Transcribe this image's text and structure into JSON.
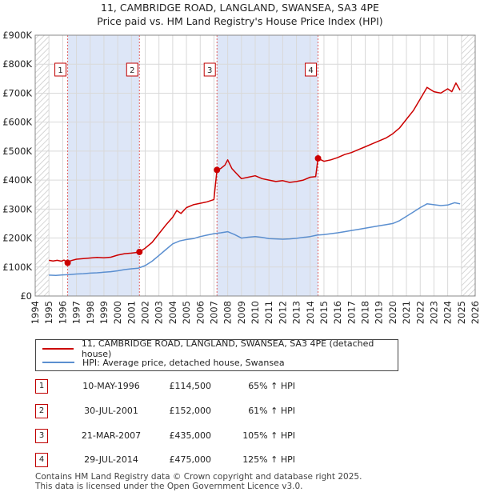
{
  "chart_data": {
    "type": "line",
    "title": [
      "11, CAMBRIDGE ROAD, LANGLAND, SWANSEA, SA3 4PE",
      "Price paid vs. HM Land Registry's House Price Index (HPI)"
    ],
    "xlim": [
      1994,
      2026
    ],
    "ylim": [
      0,
      900000
    ],
    "x_ticks": [
      1994,
      1995,
      1996,
      1997,
      1998,
      1999,
      2000,
      2001,
      2002,
      2003,
      2004,
      2005,
      2006,
      2007,
      2008,
      2009,
      2010,
      2011,
      2012,
      2013,
      2014,
      2015,
      2016,
      2017,
      2018,
      2019,
      2020,
      2021,
      2022,
      2023,
      2024,
      2025,
      2026
    ],
    "y_ticks": [
      {
        "value": 0,
        "label": "£0"
      },
      {
        "value": 100000,
        "label": "£100K"
      },
      {
        "value": 200000,
        "label": "£200K"
      },
      {
        "value": 300000,
        "label": "£300K"
      },
      {
        "value": 400000,
        "label": "£400K"
      },
      {
        "value": 500000,
        "label": "£500K"
      },
      {
        "value": 600000,
        "label": "£600K"
      },
      {
        "value": 700000,
        "label": "£700K"
      },
      {
        "value": 800000,
        "label": "£800K"
      },
      {
        "value": 900000,
        "label": "£900K"
      }
    ],
    "shaded_ranges": [
      [
        1996.36,
        2001.58
      ],
      [
        2007.22,
        2014.57
      ]
    ],
    "hatch_ranges": [
      [
        1994,
        1995
      ],
      [
        2025.0,
        2026
      ]
    ],
    "series": [
      {
        "name": "11, CAMBRIDGE ROAD, LANGLAND, SWANSEA, SA3 4PE (detached house)",
        "color": "#cc0000",
        "points": [
          [
            1995.0,
            123000
          ],
          [
            1995.3,
            121000
          ],
          [
            1995.6,
            123000
          ],
          [
            1995.9,
            120000
          ],
          [
            1996.1,
            124000
          ],
          [
            1996.36,
            114500
          ],
          [
            1996.6,
            122000
          ],
          [
            1997.0,
            127000
          ],
          [
            1997.5,
            129000
          ],
          [
            1998.0,
            131000
          ],
          [
            1998.5,
            133000
          ],
          [
            1999.0,
            132000
          ],
          [
            1999.5,
            134000
          ],
          [
            2000.0,
            141000
          ],
          [
            2000.5,
            146000
          ],
          [
            2001.0,
            148000
          ],
          [
            2001.3,
            150000
          ],
          [
            2001.58,
            152000
          ],
          [
            2002.0,
            165000
          ],
          [
            2002.5,
            185000
          ],
          [
            2003.0,
            215000
          ],
          [
            2003.5,
            245000
          ],
          [
            2004.0,
            272000
          ],
          [
            2004.3,
            295000
          ],
          [
            2004.6,
            285000
          ],
          [
            2005.0,
            305000
          ],
          [
            2005.5,
            315000
          ],
          [
            2006.0,
            320000
          ],
          [
            2006.5,
            325000
          ],
          [
            2007.0,
            333000
          ],
          [
            2007.22,
            435000
          ],
          [
            2007.5,
            440000
          ],
          [
            2007.8,
            452000
          ],
          [
            2008.0,
            470000
          ],
          [
            2008.3,
            440000
          ],
          [
            2008.6,
            425000
          ],
          [
            2009.0,
            405000
          ],
          [
            2009.5,
            410000
          ],
          [
            2010.0,
            415000
          ],
          [
            2010.5,
            405000
          ],
          [
            2011.0,
            400000
          ],
          [
            2011.5,
            395000
          ],
          [
            2012.0,
            398000
          ],
          [
            2012.5,
            392000
          ],
          [
            2013.0,
            395000
          ],
          [
            2013.5,
            400000
          ],
          [
            2014.0,
            410000
          ],
          [
            2014.4,
            412000
          ],
          [
            2014.57,
            475000
          ],
          [
            2015.0,
            465000
          ],
          [
            2015.5,
            470000
          ],
          [
            2016.0,
            478000
          ],
          [
            2016.5,
            488000
          ],
          [
            2017.0,
            495000
          ],
          [
            2017.5,
            505000
          ],
          [
            2018.0,
            515000
          ],
          [
            2018.5,
            525000
          ],
          [
            2019.0,
            535000
          ],
          [
            2019.5,
            545000
          ],
          [
            2020.0,
            560000
          ],
          [
            2020.5,
            580000
          ],
          [
            2021.0,
            610000
          ],
          [
            2021.5,
            640000
          ],
          [
            2022.0,
            680000
          ],
          [
            2022.5,
            720000
          ],
          [
            2023.0,
            705000
          ],
          [
            2023.5,
            700000
          ],
          [
            2024.0,
            715000
          ],
          [
            2024.3,
            705000
          ],
          [
            2024.6,
            735000
          ],
          [
            2024.9,
            710000
          ]
        ]
      },
      {
        "name": "HPI: Average price, detached house, Swansea",
        "color": "#5b8fd0",
        "points": [
          [
            1995.0,
            72000
          ],
          [
            1995.5,
            71000
          ],
          [
            1996.0,
            73000
          ],
          [
            1996.5,
            74000
          ],
          [
            1997.0,
            76000
          ],
          [
            1997.5,
            77000
          ],
          [
            1998.0,
            79000
          ],
          [
            1998.5,
            80000
          ],
          [
            1999.0,
            82000
          ],
          [
            1999.5,
            84000
          ],
          [
            2000.0,
            87000
          ],
          [
            2000.5,
            91000
          ],
          [
            2001.0,
            94000
          ],
          [
            2001.5,
            96000
          ],
          [
            2002.0,
            105000
          ],
          [
            2002.5,
            120000
          ],
          [
            2003.0,
            140000
          ],
          [
            2003.5,
            160000
          ],
          [
            2004.0,
            180000
          ],
          [
            2004.5,
            190000
          ],
          [
            2005.0,
            195000
          ],
          [
            2005.5,
            198000
          ],
          [
            2006.0,
            205000
          ],
          [
            2006.5,
            210000
          ],
          [
            2007.0,
            215000
          ],
          [
            2007.5,
            218000
          ],
          [
            2008.0,
            222000
          ],
          [
            2008.5,
            212000
          ],
          [
            2009.0,
            200000
          ],
          [
            2009.5,
            203000
          ],
          [
            2010.0,
            205000
          ],
          [
            2010.5,
            202000
          ],
          [
            2011.0,
            198000
          ],
          [
            2011.5,
            197000
          ],
          [
            2012.0,
            196000
          ],
          [
            2012.5,
            197000
          ],
          [
            2013.0,
            199000
          ],
          [
            2013.5,
            202000
          ],
          [
            2014.0,
            205000
          ],
          [
            2014.5,
            210000
          ],
          [
            2015.0,
            212000
          ],
          [
            2015.5,
            215000
          ],
          [
            2016.0,
            218000
          ],
          [
            2016.5,
            222000
          ],
          [
            2017.0,
            226000
          ],
          [
            2017.5,
            230000
          ],
          [
            2018.0,
            234000
          ],
          [
            2018.5,
            238000
          ],
          [
            2019.0,
            242000
          ],
          [
            2019.5,
            246000
          ],
          [
            2020.0,
            250000
          ],
          [
            2020.5,
            260000
          ],
          [
            2021.0,
            275000
          ],
          [
            2021.5,
            290000
          ],
          [
            2022.0,
            305000
          ],
          [
            2022.5,
            318000
          ],
          [
            2023.0,
            315000
          ],
          [
            2023.5,
            312000
          ],
          [
            2024.0,
            314000
          ],
          [
            2024.5,
            322000
          ],
          [
            2024.9,
            318000
          ]
        ]
      }
    ],
    "sales": [
      {
        "id": "1",
        "x": 1996.36,
        "y": 114500
      },
      {
        "id": "2",
        "x": 2001.58,
        "y": 152000
      },
      {
        "id": "3",
        "x": 2007.22,
        "y": 435000
      },
      {
        "id": "4",
        "x": 2014.57,
        "y": 475000
      }
    ]
  },
  "legend": {
    "items": [
      {
        "label": "11, CAMBRIDGE ROAD, LANGLAND, SWANSEA, SA3 4PE (detached house)",
        "color": "#cc0000"
      },
      {
        "label": "HPI: Average price, detached house, Swansea",
        "color": "#5b8fd0"
      }
    ]
  },
  "transactions": [
    {
      "id": "1",
      "date": "10-MAY-1996",
      "price": "£114,500",
      "hpi": "65% ↑ HPI"
    },
    {
      "id": "2",
      "date": "30-JUL-2001",
      "price": "£152,000",
      "hpi": "61% ↑ HPI"
    },
    {
      "id": "3",
      "date": "21-MAR-2007",
      "price": "£435,000",
      "hpi": "105% ↑ HPI"
    },
    {
      "id": "4",
      "date": "29-JUL-2014",
      "price": "£475,000",
      "hpi": "125% ↑ HPI"
    }
  ],
  "footer": {
    "line1": "Contains HM Land Registry data © Crown copyright and database right 2025.",
    "line2": "This data is licensed under the Open Government Licence v3.0."
  }
}
